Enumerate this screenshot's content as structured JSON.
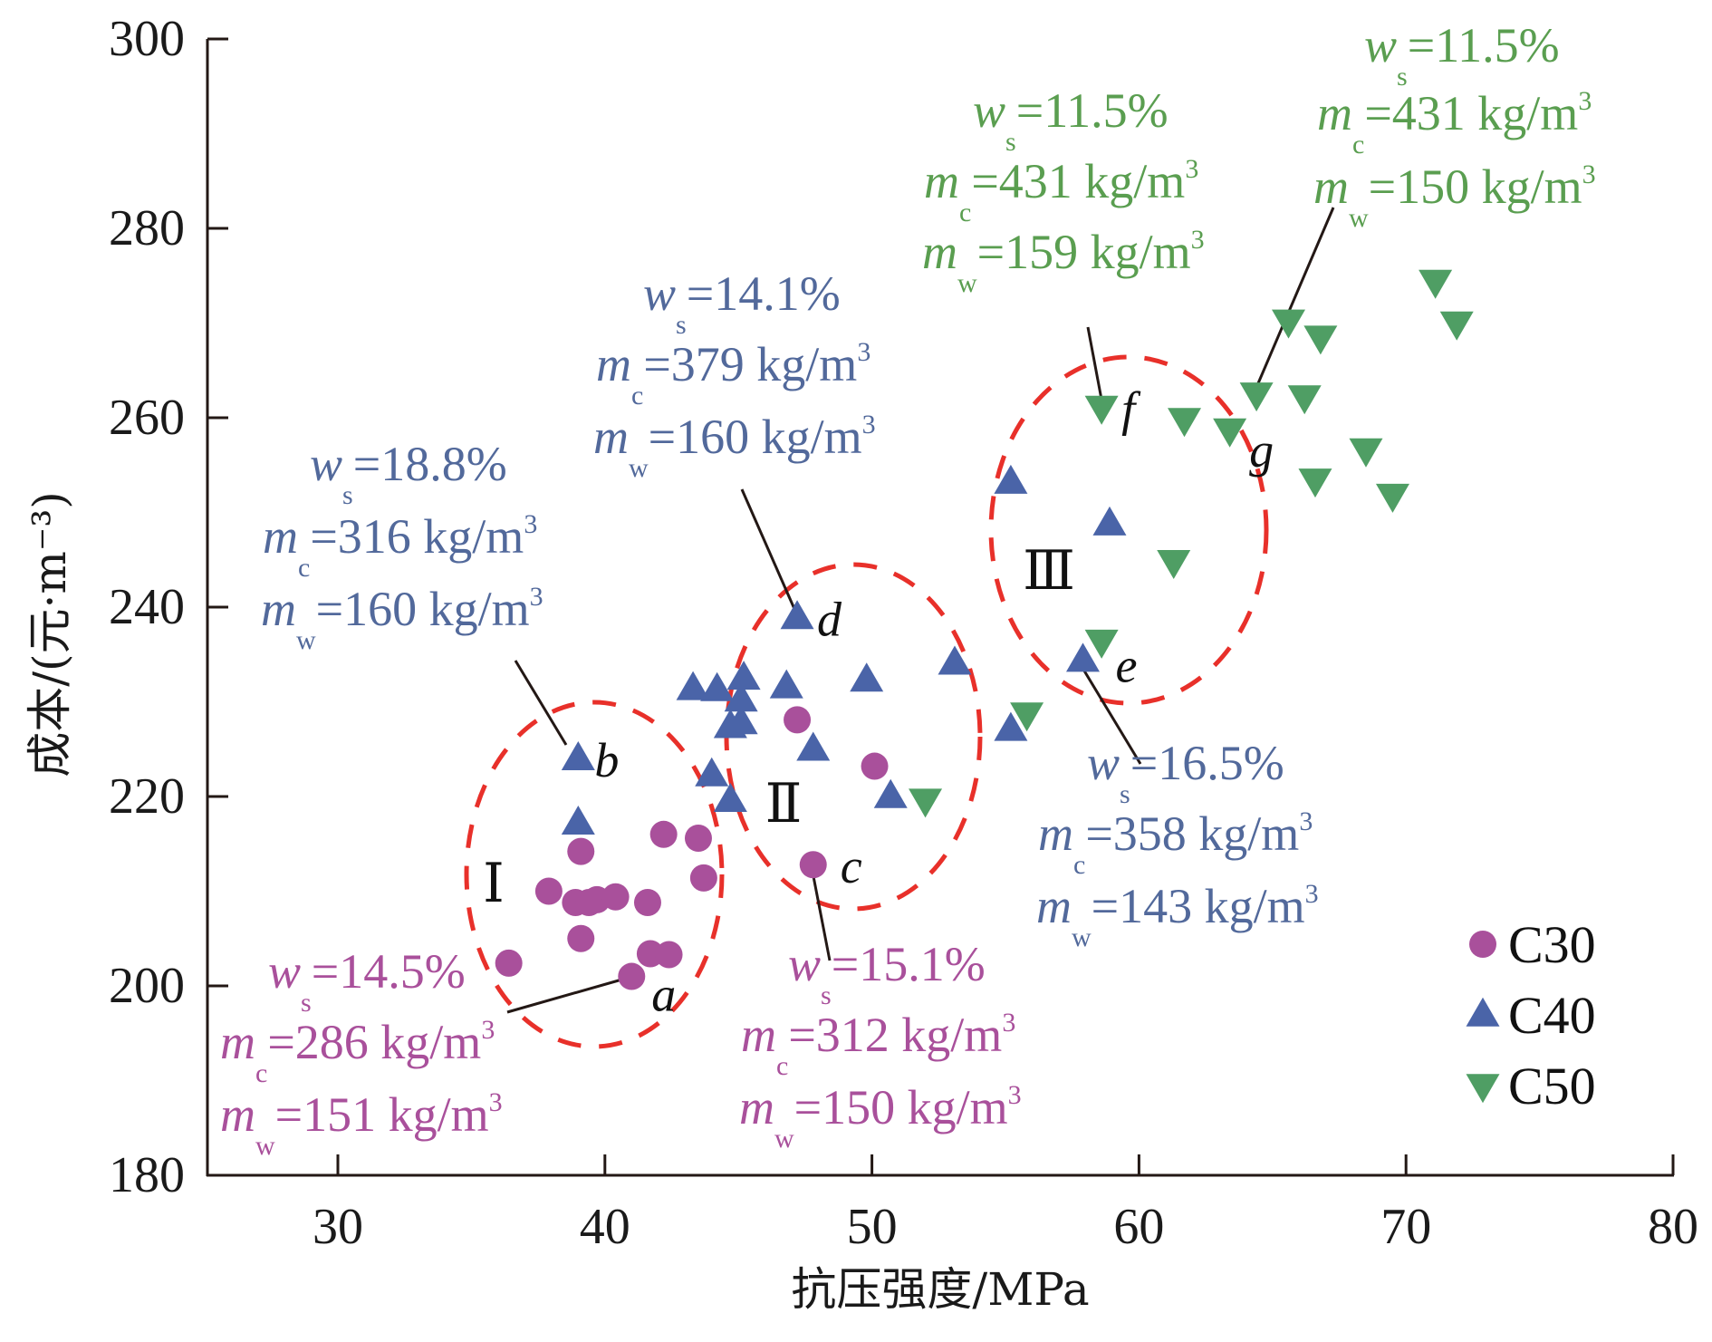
{
  "chart_data": {
    "type": "scatter",
    "title": "",
    "xlabel": "抗压强度/MPa",
    "ylabel": "成本/(元·m⁻³)",
    "xlim": [
      25,
      80
    ],
    "ylim": [
      180,
      300
    ],
    "xticks": [
      30,
      40,
      50,
      60,
      70,
      80
    ],
    "yticks": [
      180,
      200,
      220,
      240,
      260,
      280,
      300
    ],
    "grid": false,
    "legend_position": "bottom-right",
    "series": [
      {
        "name": "C30",
        "marker": "circle",
        "color": "#a9509b",
        "points": [
          [
            39.1,
            214.2
          ],
          [
            42.2,
            216.0
          ],
          [
            43.5,
            215.6
          ],
          [
            43.7,
            211.4
          ],
          [
            37.9,
            210.0
          ],
          [
            38.9,
            208.8
          ],
          [
            39.4,
            208.8
          ],
          [
            39.7,
            209.1
          ],
          [
            40.4,
            209.4
          ],
          [
            41.6,
            208.8
          ],
          [
            39.1,
            205.0
          ],
          [
            41.7,
            203.4
          ],
          [
            42.4,
            203.3
          ],
          [
            41.0,
            201.0
          ],
          [
            36.4,
            202.4
          ],
          [
            47.2,
            228.1
          ],
          [
            50.1,
            223.2
          ],
          [
            47.8,
            212.8
          ]
        ]
      },
      {
        "name": "C40",
        "marker": "triangle-up",
        "color": "#4a64a8",
        "points": [
          [
            39.0,
            224.0
          ],
          [
            39.0,
            217.2
          ],
          [
            47.2,
            238.9
          ],
          [
            43.3,
            231.4
          ],
          [
            44.2,
            231.3
          ],
          [
            45.2,
            232.5
          ],
          [
            45.1,
            230.2
          ],
          [
            45.1,
            227.8
          ],
          [
            44.7,
            227.4
          ],
          [
            46.8,
            231.6
          ],
          [
            49.8,
            232.3
          ],
          [
            53.1,
            234.1
          ],
          [
            47.8,
            225.0
          ],
          [
            44.0,
            222.3
          ],
          [
            44.7,
            219.6
          ],
          [
            50.7,
            220.0
          ],
          [
            55.2,
            227.1
          ],
          [
            55.2,
            253.2
          ],
          [
            58.9,
            248.8
          ],
          [
            57.9,
            234.4
          ]
        ]
      },
      {
        "name": "C50",
        "marker": "triangle-down",
        "color": "#4f9e64",
        "points": [
          [
            52.0,
            219.6
          ],
          [
            55.8,
            228.7
          ],
          [
            58.6,
            236.4
          ],
          [
            61.3,
            244.8
          ],
          [
            58.6,
            261.1
          ],
          [
            61.7,
            259.8
          ],
          [
            63.4,
            258.7
          ],
          [
            64.4,
            262.5
          ],
          [
            66.2,
            262.2
          ],
          [
            65.6,
            270.2
          ],
          [
            66.8,
            268.5
          ],
          [
            71.1,
            274.4
          ],
          [
            71.9,
            270.0
          ],
          [
            68.5,
            256.6
          ],
          [
            66.6,
            253.4
          ],
          [
            69.5,
            251.8
          ]
        ]
      }
    ],
    "point_labels": [
      {
        "label": "a",
        "series": "C30",
        "point": [
          41.0,
          201.0
        ]
      },
      {
        "label": "b",
        "series": "C40",
        "point": [
          39.0,
          224.0
        ]
      },
      {
        "label": "c",
        "series": "C30",
        "point": [
          47.8,
          212.8
        ]
      },
      {
        "label": "d",
        "series": "C40",
        "point": [
          47.2,
          238.9
        ]
      },
      {
        "label": "e",
        "series": "C40",
        "point": [
          57.9,
          234.4
        ]
      },
      {
        "label": "f",
        "series": "C50",
        "point": [
          58.6,
          261.1
        ]
      },
      {
        "label": "g",
        "series": "C50",
        "point": [
          64.4,
          262.5
        ]
      }
    ],
    "regions": [
      {
        "label": "Ⅰ",
        "center": [
          40.0,
          210.0
        ]
      },
      {
        "label": "Ⅱ",
        "center": [
          49.0,
          227.0
        ]
      },
      {
        "label": "Ⅲ",
        "center": [
          59.0,
          245.0
        ]
      }
    ],
    "annotations": [
      {
        "point": "a",
        "color": "#a9509b",
        "ws": "14.5%",
        "mc": "286 kg/m",
        "mw": "151 kg/m"
      },
      {
        "point": "b",
        "color": "#52699b",
        "ws": "18.8%",
        "mc": "316 kg/m",
        "mw": "160 kg/m"
      },
      {
        "point": "c",
        "color": "#a9509b",
        "ws": "15.1%",
        "mc": "312 kg/m",
        "mw": "150 kg/m"
      },
      {
        "point": "d",
        "color": "#52699b",
        "ws": "14.1%",
        "mc": "379 kg/m",
        "mw": "160 kg/m"
      },
      {
        "point": "e",
        "color": "#52699b",
        "ws": "16.5%",
        "mc": "358 kg/m",
        "mw": "143 kg/m"
      },
      {
        "point": "f",
        "color": "#5a9e50",
        "ws": "11.5%",
        "mc": "431 kg/m",
        "mw": "159 kg/m"
      },
      {
        "point": "g",
        "color": "#5a9e50",
        "ws": "11.5%",
        "mc": "431 kg/m",
        "mw": "150 kg/m"
      }
    ],
    "annotation_symbols": {
      "ws": "w",
      "ws_sub": "s",
      "mc": "m",
      "mc_sub": "c",
      "mw": "m",
      "mw_sub": "w",
      "equals": "=",
      "cube": "3"
    },
    "legend": [
      "C30",
      "C40",
      "C50"
    ],
    "ellipse_color": "#e8302a"
  }
}
